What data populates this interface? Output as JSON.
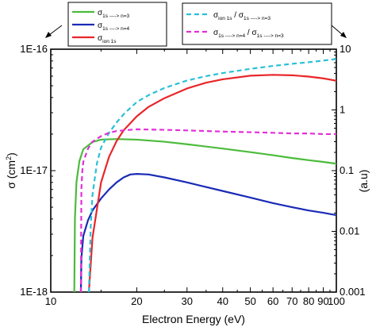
{
  "chart_data": {
    "type": "line",
    "xlabel": "Electron Energy (eV)",
    "ylabel_left": "σ (cm²)",
    "ylabel_left_parts": {
      "main": "σ (cm",
      "sup": "2",
      "end": ")"
    },
    "ylabel_right": "(a.u)",
    "x_scale": "log",
    "xlim": [
      10,
      100
    ],
    "x_ticks": [
      10,
      20,
      30,
      40,
      50,
      60,
      70,
      80,
      90,
      100
    ],
    "x_tick_labels": [
      "10",
      "20",
      "30",
      "40",
      "50",
      "60",
      "70",
      "80",
      "90",
      "100"
    ],
    "y_left_scale": "log",
    "y_left_lim": [
      1e-18,
      1e-16
    ],
    "y_left_ticks": [
      1e-18,
      1e-17,
      1e-16
    ],
    "y_left_tick_labels": [
      "1E-18",
      "1E-17",
      "1E-16"
    ],
    "y_right_scale": "log",
    "y_right_lim": [
      0.001,
      10
    ],
    "y_right_ticks": [
      0.001,
      0.01,
      0.1,
      1,
      10
    ],
    "y_right_tick_labels": [
      "0.001",
      "0.01",
      "0.1",
      "1",
      "10"
    ],
    "legend_left": {
      "placement": "top-left",
      "arrow": "points down-left toward left axis",
      "entries": [
        {
          "symbol": "σ",
          "sub": "1s ----> n=3",
          "color": "#4cbb3c"
        },
        {
          "symbol": "σ",
          "sub": "1s ----> n=4",
          "color": "#1a2bb5"
        },
        {
          "symbol": "σ",
          "sub": "ion 1s",
          "color": "#e8262a"
        }
      ]
    },
    "legend_right": {
      "placement": "top-right",
      "arrow": "points down-right toward right axis",
      "entries": [
        {
          "parts": [
            {
              "t": "σ"
            },
            {
              "t": "ion 1s",
              "sub": true
            },
            {
              "t": " / σ"
            },
            {
              "t": "1s ----> n=3",
              "sub": true
            }
          ],
          "color": "#2bc0d8"
        },
        {
          "parts": [
            {
              "t": "σ"
            },
            {
              "t": "1s ----> n=4",
              "sub": true
            },
            {
              "t": " / σ"
            },
            {
              "t": "1s ----> n=3",
              "sub": true
            }
          ],
          "color": "#e22fd8"
        }
      ]
    },
    "series": [
      {
        "name": "σ 1s ----> n=3",
        "axis": "left",
        "color": "#4cbb3c",
        "style": "solid",
        "points": [
          [
            12.09,
            1e-18
          ],
          [
            12.15,
            4e-18
          ],
          [
            12.3,
            8e-18
          ],
          [
            12.6,
            1.2e-17
          ],
          [
            13,
            1.5e-17
          ],
          [
            14,
            1.72e-17
          ],
          [
            15,
            1.8e-17
          ],
          [
            17,
            1.82e-17
          ],
          [
            20,
            1.8e-17
          ],
          [
            25,
            1.73e-17
          ],
          [
            30,
            1.65e-17
          ],
          [
            40,
            1.52e-17
          ],
          [
            50,
            1.42e-17
          ],
          [
            60,
            1.34e-17
          ],
          [
            70,
            1.27e-17
          ],
          [
            80,
            1.22e-17
          ],
          [
            90,
            1.18e-17
          ],
          [
            100,
            1.14e-17
          ]
        ]
      },
      {
        "name": "σ 1s ----> n=4",
        "axis": "left",
        "color": "#1a2bb5",
        "style": "solid",
        "points": [
          [
            12.75,
            1e-18
          ],
          [
            12.8,
            1.9e-18
          ],
          [
            13,
            2.9e-18
          ],
          [
            13.5,
            3.9e-18
          ],
          [
            14,
            4.7e-18
          ],
          [
            15,
            5.9e-18
          ],
          [
            16,
            7e-18
          ],
          [
            17,
            8e-18
          ],
          [
            18,
            8.8e-18
          ],
          [
            19,
            9.3e-18
          ],
          [
            20,
            9.4e-18
          ],
          [
            22,
            9.3e-18
          ],
          [
            25,
            8.8e-18
          ],
          [
            30,
            8e-18
          ],
          [
            40,
            6.8e-18
          ],
          [
            50,
            6e-18
          ],
          [
            60,
            5.4e-18
          ],
          [
            70,
            5e-18
          ],
          [
            80,
            4.7e-18
          ],
          [
            90,
            4.5e-18
          ],
          [
            100,
            4.3e-18
          ]
        ]
      },
      {
        "name": "σ ion 1s",
        "axis": "left",
        "color": "#e8262a",
        "style": "solid",
        "points": [
          [
            13.6,
            1e-18
          ],
          [
            14,
            2.8e-18
          ],
          [
            15,
            8e-18
          ],
          [
            16,
            1.3e-17
          ],
          [
            17,
            1.75e-17
          ],
          [
            18,
            2.15e-17
          ],
          [
            20,
            2.8e-17
          ],
          [
            22,
            3.35e-17
          ],
          [
            25,
            3.95e-17
          ],
          [
            30,
            4.75e-17
          ],
          [
            35,
            5.3e-17
          ],
          [
            40,
            5.65e-17
          ],
          [
            50,
            6.05e-17
          ],
          [
            60,
            6.15e-17
          ],
          [
            70,
            6.1e-17
          ],
          [
            80,
            5.95e-17
          ],
          [
            90,
            5.75e-17
          ],
          [
            100,
            5.5e-17
          ]
        ]
      },
      {
        "name": "σ ion 1s / σ 1s ----> n=3",
        "axis": "right",
        "color": "#2bc0d8",
        "style": "dashed",
        "points": [
          [
            13.6,
            0.001
          ],
          [
            13.8,
            0.012
          ],
          [
            14,
            0.04
          ],
          [
            14.5,
            0.13
          ],
          [
            15,
            0.24
          ],
          [
            16,
            0.42
          ],
          [
            17,
            0.62
          ],
          [
            18,
            0.85
          ],
          [
            20,
            1.35
          ],
          [
            22,
            1.75
          ],
          [
            25,
            2.3
          ],
          [
            30,
            3.05
          ],
          [
            35,
            3.6
          ],
          [
            40,
            4.05
          ],
          [
            50,
            4.75
          ],
          [
            60,
            5.3
          ],
          [
            70,
            5.75
          ],
          [
            80,
            6.1
          ],
          [
            90,
            6.5
          ],
          [
            100,
            6.9
          ]
        ]
      },
      {
        "name": "σ 1s ----> n=4 / σ 1s ----> n=3",
        "axis": "right",
        "color": "#e22fd8",
        "style": "dashed",
        "points": [
          [
            12.75,
            0.001
          ],
          [
            12.8,
            0.05
          ],
          [
            12.9,
            0.1
          ],
          [
            13,
            0.14
          ],
          [
            13.5,
            0.23
          ],
          [
            14,
            0.3
          ],
          [
            15,
            0.37
          ],
          [
            16,
            0.42
          ],
          [
            17,
            0.45
          ],
          [
            20,
            0.48
          ],
          [
            25,
            0.47
          ],
          [
            30,
            0.46
          ],
          [
            40,
            0.44
          ],
          [
            50,
            0.43
          ],
          [
            60,
            0.42
          ],
          [
            70,
            0.41
          ],
          [
            80,
            0.41
          ],
          [
            90,
            0.4
          ],
          [
            100,
            0.4
          ]
        ]
      }
    ]
  }
}
